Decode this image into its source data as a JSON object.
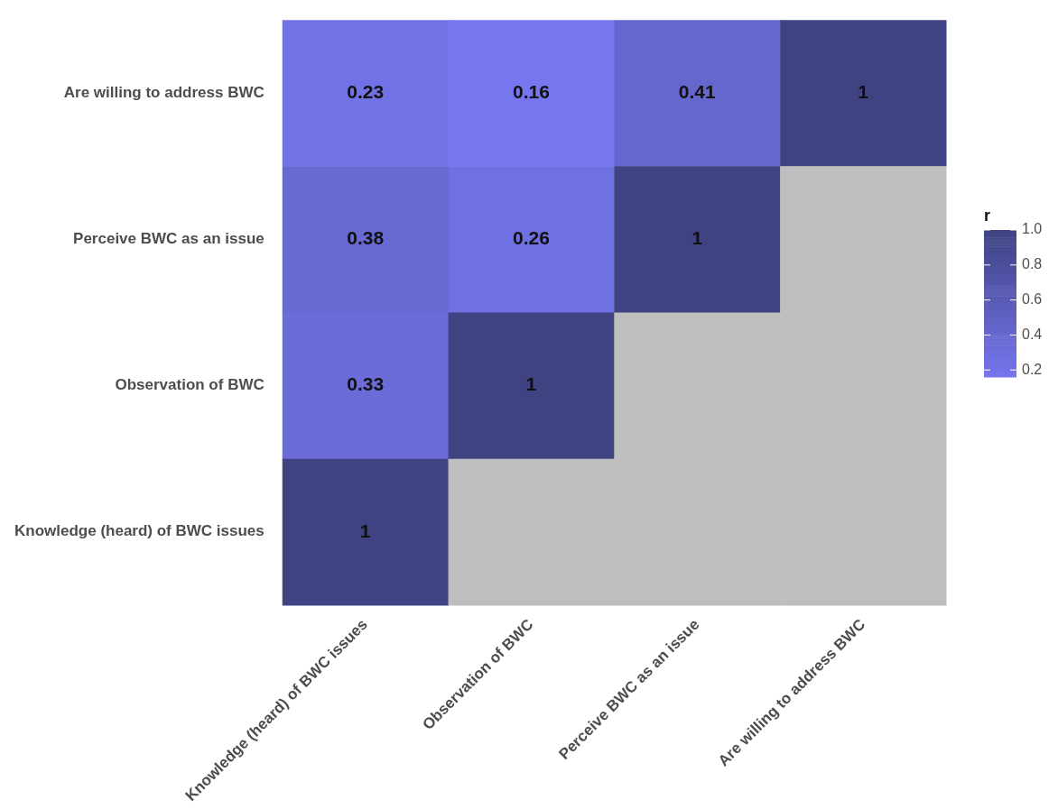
{
  "chart_data": {
    "type": "heatmap",
    "categories": [
      "Knowledge (heard) of BWC issues",
      "Observation of BWC",
      "Perceive BWC as an issue",
      "Are willing to address BWC"
    ],
    "y_categories": [
      "Are willing to address BWC",
      "Perceive BWC as an issue",
      "Observation of BWC",
      "Knowledge (heard) of BWC issues"
    ],
    "cells": [
      [
        0.23,
        0.16,
        0.41,
        1
      ],
      [
        0.38,
        0.26,
        1,
        null
      ],
      [
        0.33,
        1,
        null,
        null
      ],
      [
        1,
        null,
        null,
        null
      ]
    ],
    "clabel": "r",
    "clim": [
      0.16,
      1
    ],
    "cticks": [
      {
        "value": 0.2,
        "label": "0.2"
      },
      {
        "value": 0.4,
        "label": "0.4"
      },
      {
        "value": 0.6,
        "label": "0.6"
      },
      {
        "value": 0.8,
        "label": "0.8"
      },
      {
        "value": 1,
        "label": "1.0"
      }
    ],
    "data_labels": true
  }
}
